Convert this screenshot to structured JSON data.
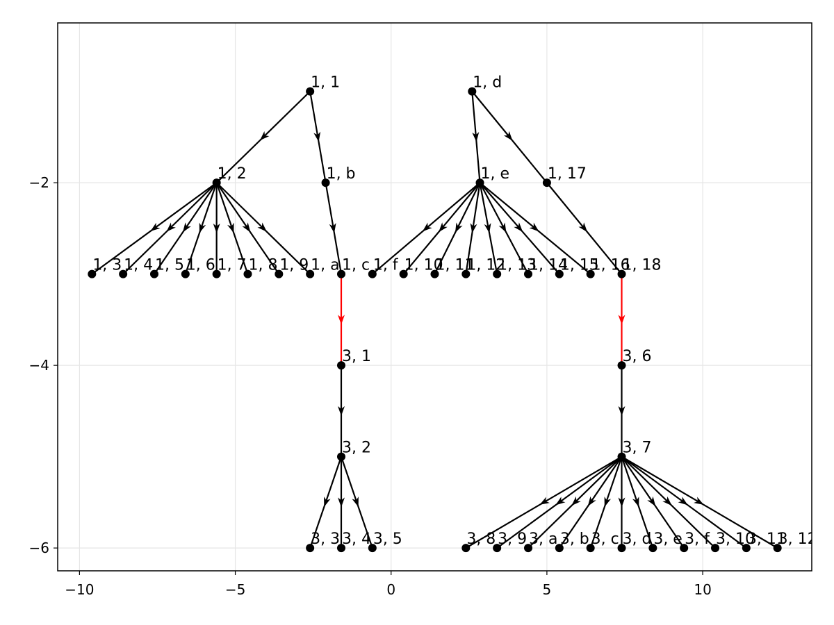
{
  "chart_data": {
    "type": "scatter",
    "title": "",
    "xlabel": "",
    "ylabel": "",
    "xlim": [
      -10.7,
      13.5
    ],
    "ylim": [
      -6.25,
      -0.25
    ],
    "grid": true,
    "legend": "none",
    "x_ticks": [
      {
        "value": -10,
        "label": "−10"
      },
      {
        "value": -5,
        "label": "−5"
      },
      {
        "value": 0,
        "label": "0"
      },
      {
        "value": 5,
        "label": "5"
      },
      {
        "value": 10,
        "label": "10"
      }
    ],
    "y_ticks": [
      {
        "value": -2,
        "label": "−2"
      },
      {
        "value": -4,
        "label": "−4"
      },
      {
        "value": -6,
        "label": "−6"
      }
    ],
    "colors": {
      "edge": "#000000",
      "highlight_edge": "#ff0000",
      "node": "#000000",
      "grid": "#e6e6e6"
    },
    "nodes": [
      {
        "id": "1, 1",
        "x": -2.6,
        "y": -1
      },
      {
        "id": "1, 2",
        "x": -5.6,
        "y": -2
      },
      {
        "id": "1, b",
        "x": -2.1,
        "y": -2
      },
      {
        "id": "1, 3",
        "x": -9.6,
        "y": -3
      },
      {
        "id": "1, 4",
        "x": -8.6,
        "y": -3
      },
      {
        "id": "1, 5",
        "x": -7.6,
        "y": -3
      },
      {
        "id": "1, 6",
        "x": -6.6,
        "y": -3
      },
      {
        "id": "1, 7",
        "x": -5.6,
        "y": -3
      },
      {
        "id": "1, 8",
        "x": -4.6,
        "y": -3
      },
      {
        "id": "1, 9",
        "x": -3.6,
        "y": -3
      },
      {
        "id": "1, a",
        "x": -2.6,
        "y": -3
      },
      {
        "id": "1, c",
        "x": -1.6,
        "y": -3
      },
      {
        "id": "1, d",
        "x": 2.6,
        "y": -1
      },
      {
        "id": "1, e",
        "x": 2.85,
        "y": -2
      },
      {
        "id": "1, 17",
        "x": 5.0,
        "y": -2
      },
      {
        "id": "1, f",
        "x": -0.6,
        "y": -3
      },
      {
        "id": "1, 10",
        "x": 0.4,
        "y": -3
      },
      {
        "id": "1, 11",
        "x": 1.4,
        "y": -3
      },
      {
        "id": "1, 12",
        "x": 2.4,
        "y": -3
      },
      {
        "id": "1, 13",
        "x": 3.4,
        "y": -3
      },
      {
        "id": "1, 14",
        "x": 4.4,
        "y": -3
      },
      {
        "id": "1, 15",
        "x": 5.4,
        "y": -3
      },
      {
        "id": "1, 16",
        "x": 6.4,
        "y": -3
      },
      {
        "id": "1, 18",
        "x": 7.4,
        "y": -3
      },
      {
        "id": "3, 1",
        "x": -1.6,
        "y": -4
      },
      {
        "id": "3, 2",
        "x": -1.6,
        "y": -5
      },
      {
        "id": "3, 3",
        "x": -2.6,
        "y": -6
      },
      {
        "id": "3, 4",
        "x": -1.6,
        "y": -6
      },
      {
        "id": "3, 5",
        "x": -0.6,
        "y": -6
      },
      {
        "id": "3, 6",
        "x": 7.4,
        "y": -4
      },
      {
        "id": "3, 7",
        "x": 7.4,
        "y": -5
      },
      {
        "id": "3, 8",
        "x": 2.4,
        "y": -6
      },
      {
        "id": "3, 9",
        "x": 3.4,
        "y": -6
      },
      {
        "id": "3, a",
        "x": 4.4,
        "y": -6
      },
      {
        "id": "3, b",
        "x": 5.4,
        "y": -6
      },
      {
        "id": "3, c",
        "x": 6.4,
        "y": -6
      },
      {
        "id": "3, d",
        "x": 7.4,
        "y": -6
      },
      {
        "id": "3, e",
        "x": 8.4,
        "y": -6
      },
      {
        "id": "3, f",
        "x": 9.4,
        "y": -6
      },
      {
        "id": "3, 10",
        "x": 10.4,
        "y": -6
      },
      {
        "id": "3, 11",
        "x": 11.4,
        "y": -6
      },
      {
        "id": "3, 12",
        "x": 12.4,
        "y": -6
      }
    ],
    "edges": [
      {
        "from": "1, 1",
        "to": "1, 2"
      },
      {
        "from": "1, 1",
        "to": "1, b"
      },
      {
        "from": "1, b",
        "to": "1, c"
      },
      {
        "from": "1, 2",
        "to": "1, 3"
      },
      {
        "from": "1, 2",
        "to": "1, 4"
      },
      {
        "from": "1, 2",
        "to": "1, 5"
      },
      {
        "from": "1, 2",
        "to": "1, 6"
      },
      {
        "from": "1, 2",
        "to": "1, 7"
      },
      {
        "from": "1, 2",
        "to": "1, 8"
      },
      {
        "from": "1, 2",
        "to": "1, 9"
      },
      {
        "from": "1, 2",
        "to": "1, a"
      },
      {
        "from": "1, d",
        "to": "1, e"
      },
      {
        "from": "1, d",
        "to": "1, 17"
      },
      {
        "from": "1, 17",
        "to": "1, 18"
      },
      {
        "from": "1, e",
        "to": "1, f"
      },
      {
        "from": "1, e",
        "to": "1, 10"
      },
      {
        "from": "1, e",
        "to": "1, 11"
      },
      {
        "from": "1, e",
        "to": "1, 12"
      },
      {
        "from": "1, e",
        "to": "1, 13"
      },
      {
        "from": "1, e",
        "to": "1, 14"
      },
      {
        "from": "1, e",
        "to": "1, 15"
      },
      {
        "from": "1, e",
        "to": "1, 16"
      },
      {
        "from": "1, c",
        "to": "3, 1",
        "highlight": true
      },
      {
        "from": "1, 18",
        "to": "3, 6",
        "highlight": true
      },
      {
        "from": "3, 1",
        "to": "3, 2"
      },
      {
        "from": "3, 2",
        "to": "3, 3"
      },
      {
        "from": "3, 2",
        "to": "3, 4"
      },
      {
        "from": "3, 2",
        "to": "3, 5"
      },
      {
        "from": "3, 6",
        "to": "3, 7"
      },
      {
        "from": "3, 7",
        "to": "3, 8"
      },
      {
        "from": "3, 7",
        "to": "3, 9"
      },
      {
        "from": "3, 7",
        "to": "3, a"
      },
      {
        "from": "3, 7",
        "to": "3, b"
      },
      {
        "from": "3, 7",
        "to": "3, c"
      },
      {
        "from": "3, 7",
        "to": "3, d"
      },
      {
        "from": "3, 7",
        "to": "3, e"
      },
      {
        "from": "3, 7",
        "to": "3, f"
      },
      {
        "from": "3, 7",
        "to": "3, 10"
      },
      {
        "from": "3, 7",
        "to": "3, 11"
      },
      {
        "from": "3, 7",
        "to": "3, 12"
      }
    ]
  }
}
